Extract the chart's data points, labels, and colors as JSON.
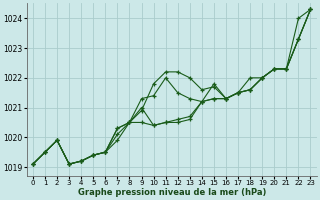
{
  "title": "Graphe pression niveau de la mer (hPa)",
  "bg_color": "#cce8e8",
  "grid_color": "#aacccc",
  "line_color": "#1a5c1a",
  "marker_color": "#1a5c1a",
  "xlim": [
    -0.5,
    23.5
  ],
  "ylim": [
    1018.7,
    1024.5
  ],
  "yticks": [
    1019,
    1020,
    1021,
    1022,
    1023,
    1024
  ],
  "xticks": [
    0,
    1,
    2,
    3,
    4,
    5,
    6,
    7,
    8,
    9,
    10,
    11,
    12,
    13,
    14,
    15,
    16,
    17,
    18,
    19,
    20,
    21,
    22,
    23
  ],
  "series": [
    [
      1019.1,
      1019.5,
      1019.9,
      1019.1,
      1019.2,
      1019.4,
      1019.5,
      1020.1,
      1020.5,
      1020.9,
      1021.8,
      1022.2,
      1022.2,
      1022.0,
      1021.6,
      1021.7,
      1021.3,
      1021.5,
      1022.0,
      1022.0,
      1022.3,
      1022.3,
      1024.0,
      1024.3
    ],
    [
      1019.1,
      1019.5,
      1019.9,
      1019.1,
      1019.2,
      1019.4,
      1019.5,
      1020.3,
      1020.5,
      1021.3,
      1021.4,
      1022.0,
      1021.5,
      1021.3,
      1021.2,
      1021.8,
      1021.3,
      1021.5,
      1021.6,
      1022.0,
      1022.3,
      1022.3,
      1023.3,
      1024.3
    ],
    [
      1019.1,
      1019.5,
      1019.9,
      1019.1,
      1019.2,
      1019.4,
      1019.5,
      1020.3,
      1020.5,
      1021.0,
      1020.4,
      1020.5,
      1020.6,
      1020.7,
      1021.2,
      1021.3,
      1021.3,
      1021.5,
      1021.6,
      1022.0,
      1022.3,
      1022.3,
      1023.3,
      1024.3
    ],
    [
      1019.1,
      1019.5,
      1019.9,
      1019.1,
      1019.2,
      1019.4,
      1019.5,
      1019.9,
      1020.5,
      1020.5,
      1020.4,
      1020.5,
      1020.5,
      1020.6,
      1021.2,
      1021.3,
      1021.3,
      1021.5,
      1021.6,
      1022.0,
      1022.3,
      1022.3,
      1023.3,
      1024.3
    ]
  ]
}
